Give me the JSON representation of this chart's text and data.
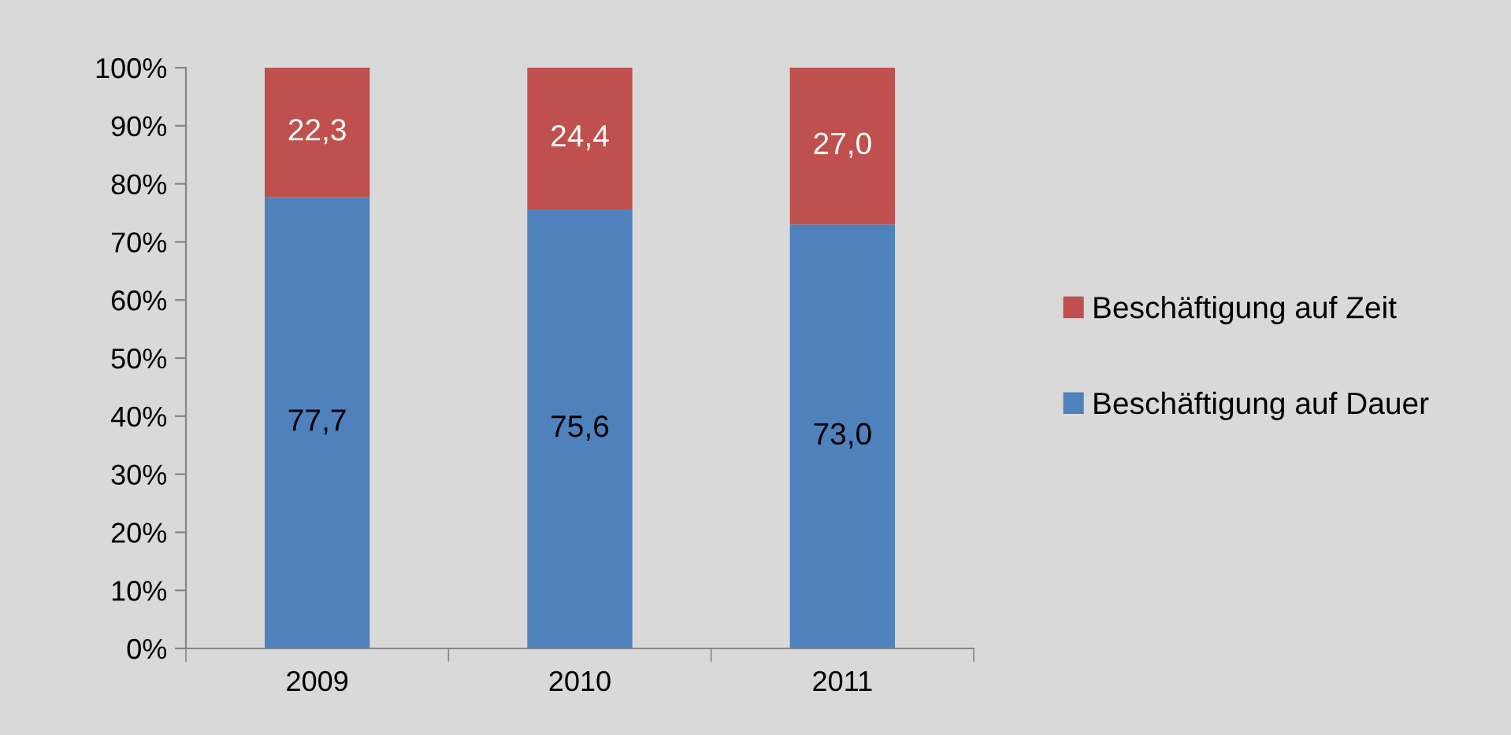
{
  "chart_data": {
    "type": "bar",
    "stacked": true,
    "categories": [
      "2009",
      "2010",
      "2011"
    ],
    "series": [
      {
        "name": "Beschäftigung auf Dauer",
        "color": "#4f81bd",
        "values": [
          77.7,
          75.6,
          73.0
        ],
        "value_labels": [
          "77,7",
          "75,6",
          "73,0"
        ]
      },
      {
        "name": "Beschäftigung auf Zeit",
        "color": "#c0504d",
        "values": [
          22.3,
          24.4,
          27.0
        ],
        "value_labels": [
          "22,3",
          "24,4",
          "27,0"
        ]
      }
    ],
    "ylim": [
      0,
      100
    ],
    "yticks": [
      {
        "value": 0,
        "label": "0%"
      },
      {
        "value": 10,
        "label": "10%"
      },
      {
        "value": 20,
        "label": "20%"
      },
      {
        "value": 30,
        "label": "30%"
      },
      {
        "value": 40,
        "label": "40%"
      },
      {
        "value": 50,
        "label": "50%"
      },
      {
        "value": 60,
        "label": "60%"
      },
      {
        "value": 70,
        "label": "70%"
      },
      {
        "value": 80,
        "label": "80%"
      },
      {
        "value": 90,
        "label": "90%"
      },
      {
        "value": 100,
        "label": "100%"
      }
    ],
    "grid": false,
    "legend": "right"
  }
}
